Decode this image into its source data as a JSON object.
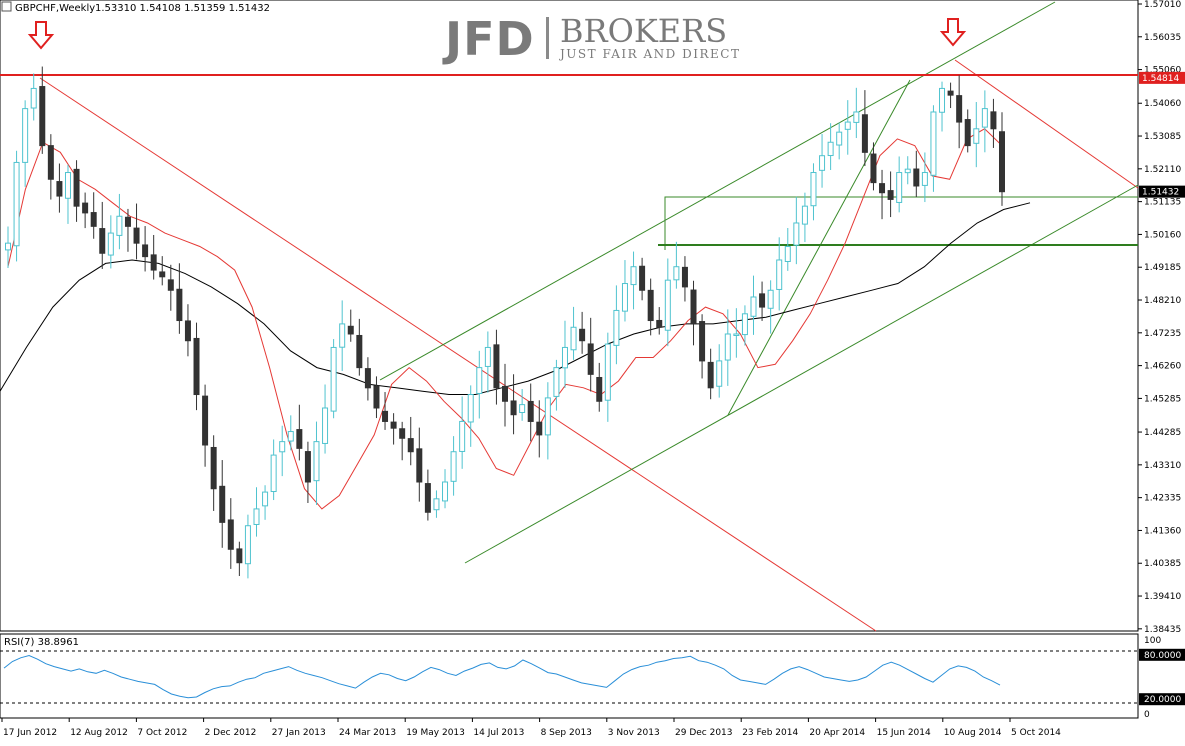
{
  "header": {
    "symbol_label": "GBPCHF,Weekly",
    "ohlc_label": "1.53310 1.54108 1.51359 1.51432"
  },
  "watermark": {
    "brand_left": "JFD",
    "brand_right": "BROKERS",
    "tagline": "JUST FAIR AND DIRECT"
  },
  "colors": {
    "up_candle": "#4fc3cf",
    "down_candle": "#333333",
    "ema_fast": "#e53935",
    "ma_slow": "#000000",
    "trend_red": "#e53935",
    "channel_green": "#3a8a2a",
    "resistance_red": "#e0201f",
    "rsi_line": "#2a8fd8",
    "price_tag_red": "#e0201f",
    "price_tag_black": "#000000"
  },
  "icons": [
    "down-arrow-icon",
    "down-arrow-icon"
  ],
  "chart_data": [
    {
      "type": "candlestick",
      "title": "GBPCHF,Weekly",
      "y_ticks": [
        "1.57010",
        "1.56035",
        "1.55060",
        "1.54060",
        "1.53085",
        "1.52110",
        "1.51135",
        "1.50160",
        "1.49185",
        "1.48210",
        "1.47235",
        "1.46260",
        "1.45285",
        "1.44285",
        "1.43310",
        "1.42335",
        "1.41360",
        "1.40385",
        "1.39410",
        "1.38435"
      ],
      "ylim": [
        1.3843,
        1.5701
      ],
      "x_ticks": [
        "17 Jun 2012",
        "12 Aug 2012",
        "7 Oct 2012",
        "2 Dec 2012",
        "27 Jan 2013",
        "24 Mar 2013",
        "19 May 2013",
        "14 Jul 2013",
        "8 Sep 2013",
        "3 Nov 2013",
        "29 Dec 2013",
        "23 Feb 2014",
        "20 Apr 2014",
        "15 Jun 2014",
        "10 Aug 2014",
        "5 Oct 2014"
      ],
      "price_tags": [
        {
          "value": 1.54814,
          "label": "1.54814",
          "role": "resistance"
        },
        {
          "value": 1.51432,
          "label": "1.51432",
          "role": "current"
        }
      ],
      "close_path": [
        1.499,
        1.523,
        1.539,
        1.545,
        1.528,
        1.518,
        1.513,
        1.52,
        1.51,
        1.508,
        1.504,
        1.496,
        1.502,
        1.507,
        1.504,
        1.499,
        1.495,
        1.491,
        1.489,
        1.485,
        1.476,
        1.47,
        1.454,
        1.439,
        1.426,
        1.416,
        1.408,
        1.404,
        1.415,
        1.42,
        1.425,
        1.436,
        1.44,
        1.443,
        1.438,
        1.428,
        1.44,
        1.45,
        1.468,
        1.475,
        1.472,
        1.462,
        1.456,
        1.45,
        1.446,
        1.444,
        1.441,
        1.437,
        1.428,
        1.419,
        1.423,
        1.428,
        1.437,
        1.446,
        1.454,
        1.462,
        1.468,
        1.456,
        1.452,
        1.448,
        1.451,
        1.446,
        1.442,
        1.453,
        1.462,
        1.468,
        1.474,
        1.47,
        1.46,
        1.452,
        1.469,
        1.479,
        1.487,
        1.492,
        1.485,
        1.476,
        1.474,
        1.488,
        1.492,
        1.486,
        1.475,
        1.464,
        1.456,
        1.464,
        1.472,
        1.472,
        1.478,
        1.483,
        1.48,
        1.485,
        1.494,
        1.498,
        1.505,
        1.51,
        1.52,
        1.525,
        1.529,
        1.532,
        1.535,
        1.538,
        1.526,
        1.517,
        1.514,
        1.512,
        1.52,
        1.521,
        1.516,
        1.52,
        1.538,
        1.545,
        1.543,
        1.535,
        1.528,
        1.533,
        1.539,
        1.533,
        1.5143
      ],
      "ma_slow_path": [
        1.455,
        1.468,
        1.48,
        1.488,
        1.493,
        1.494,
        1.493,
        1.49,
        1.486,
        1.481,
        1.475,
        1.467,
        1.462,
        1.46,
        1.457,
        1.456,
        1.455,
        1.454,
        1.454,
        1.456,
        1.458,
        1.461,
        1.465,
        1.469,
        1.472,
        1.474,
        1.475,
        1.475,
        1.476,
        1.477,
        1.479,
        1.481,
        1.483,
        1.485,
        1.487,
        1.492,
        1.499,
        1.505,
        1.509,
        1.511
      ],
      "ema_fast_path": [
        1.492,
        1.515,
        1.529,
        1.526,
        1.518,
        1.515,
        1.511,
        1.507,
        1.505,
        1.502,
        1.5,
        1.498,
        1.495,
        1.491,
        1.48,
        1.462,
        1.442,
        1.426,
        1.42,
        1.424,
        1.433,
        1.442,
        1.457,
        1.462,
        1.458,
        1.452,
        1.447,
        1.441,
        1.432,
        1.43,
        1.44,
        1.45,
        1.457,
        1.456,
        1.454,
        1.458,
        1.465,
        1.465,
        1.47,
        1.476,
        1.48,
        1.478,
        1.472,
        1.462,
        1.463,
        1.47,
        1.478,
        1.488,
        1.499,
        1.512,
        1.525,
        1.53,
        1.528,
        1.519,
        1.518,
        1.53,
        1.533,
        1.528
      ],
      "annotations": [
        "down arrow above Jun 2012 high",
        "down arrow above Oct 2014 high"
      ]
    },
    {
      "type": "line",
      "title": "RSI(7) 38.8961",
      "ylim": [
        0,
        100
      ],
      "y_ticks": [
        "100",
        "80.0000",
        "20.0000",
        "0"
      ],
      "levels": [
        80,
        20
      ],
      "series": [
        {
          "name": "RSI(7)",
          "values": [
            62,
            71,
            76,
            79,
            74,
            68,
            64,
            61,
            58,
            61,
            57,
            55,
            59,
            55,
            50,
            47,
            44,
            42,
            40,
            33,
            27,
            24,
            22,
            23,
            29,
            34,
            37,
            38,
            43,
            47,
            49,
            55,
            58,
            61,
            64,
            59,
            55,
            52,
            49,
            45,
            41,
            38,
            35,
            43,
            50,
            55,
            53,
            48,
            45,
            50,
            57,
            63,
            60,
            55,
            52,
            58,
            62,
            67,
            69,
            63,
            61,
            65,
            73,
            68,
            62,
            56,
            54,
            50,
            46,
            42,
            40,
            38,
            36,
            45,
            54,
            60,
            64,
            66,
            70,
            72,
            75,
            76,
            78,
            72,
            70,
            66,
            61,
            52,
            46,
            44,
            42,
            40,
            47,
            55,
            61,
            64,
            60,
            55,
            50,
            48,
            46,
            44,
            46,
            50,
            58,
            66,
            70,
            66,
            60,
            54,
            48,
            43,
            52,
            61,
            65,
            63,
            58,
            50,
            45,
            39
          ]
        }
      ]
    }
  ]
}
